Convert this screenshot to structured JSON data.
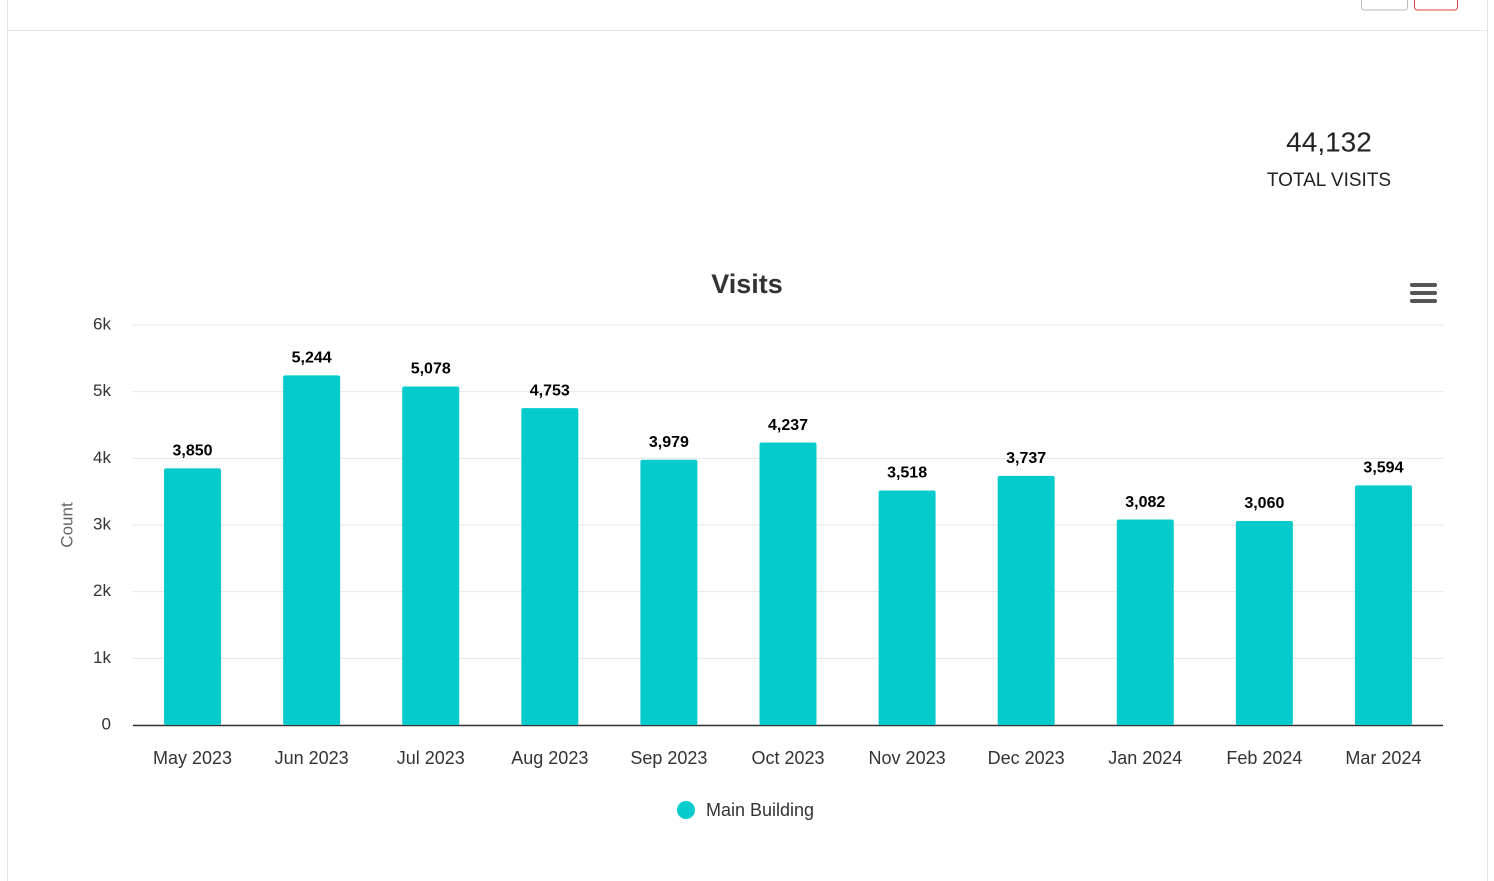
{
  "summary": {
    "value": "44,132",
    "label": "TOTAL VISITS"
  },
  "chart_data": {
    "type": "bar",
    "title": "Visits",
    "y_label": "Count",
    "categories": [
      "May 2023",
      "Jun 2023",
      "Jul 2023",
      "Aug 2023",
      "Sep 2023",
      "Oct 2023",
      "Nov 2023",
      "Dec 2023",
      "Jan 2024",
      "Feb 2024",
      "Mar 2024"
    ],
    "series": [
      {
        "name": "Main Building",
        "color": "#06cbcd",
        "values": [
          3850,
          5244,
          5078,
          4753,
          3979,
          4237,
          3518,
          3737,
          3082,
          3060,
          3594
        ],
        "value_labels": [
          "3,850",
          "5,244",
          "5,078",
          "4,753",
          "3,979",
          "4,237",
          "3,518",
          "3,737",
          "3,082",
          "3,060",
          "3,594"
        ]
      }
    ],
    "ylim": [
      0,
      6000
    ],
    "yticks": [
      0,
      {
        "value": 1000,
        "label": "1k"
      },
      {
        "value": 2000,
        "label": "2k"
      },
      {
        "value": 3000,
        "label": "3k"
      },
      {
        "value": 4000,
        "label": "4k"
      },
      {
        "value": 5000,
        "label": "5k"
      },
      {
        "value": 6000,
        "label": "6k"
      }
    ],
    "grid": true,
    "legend": "bottom"
  }
}
